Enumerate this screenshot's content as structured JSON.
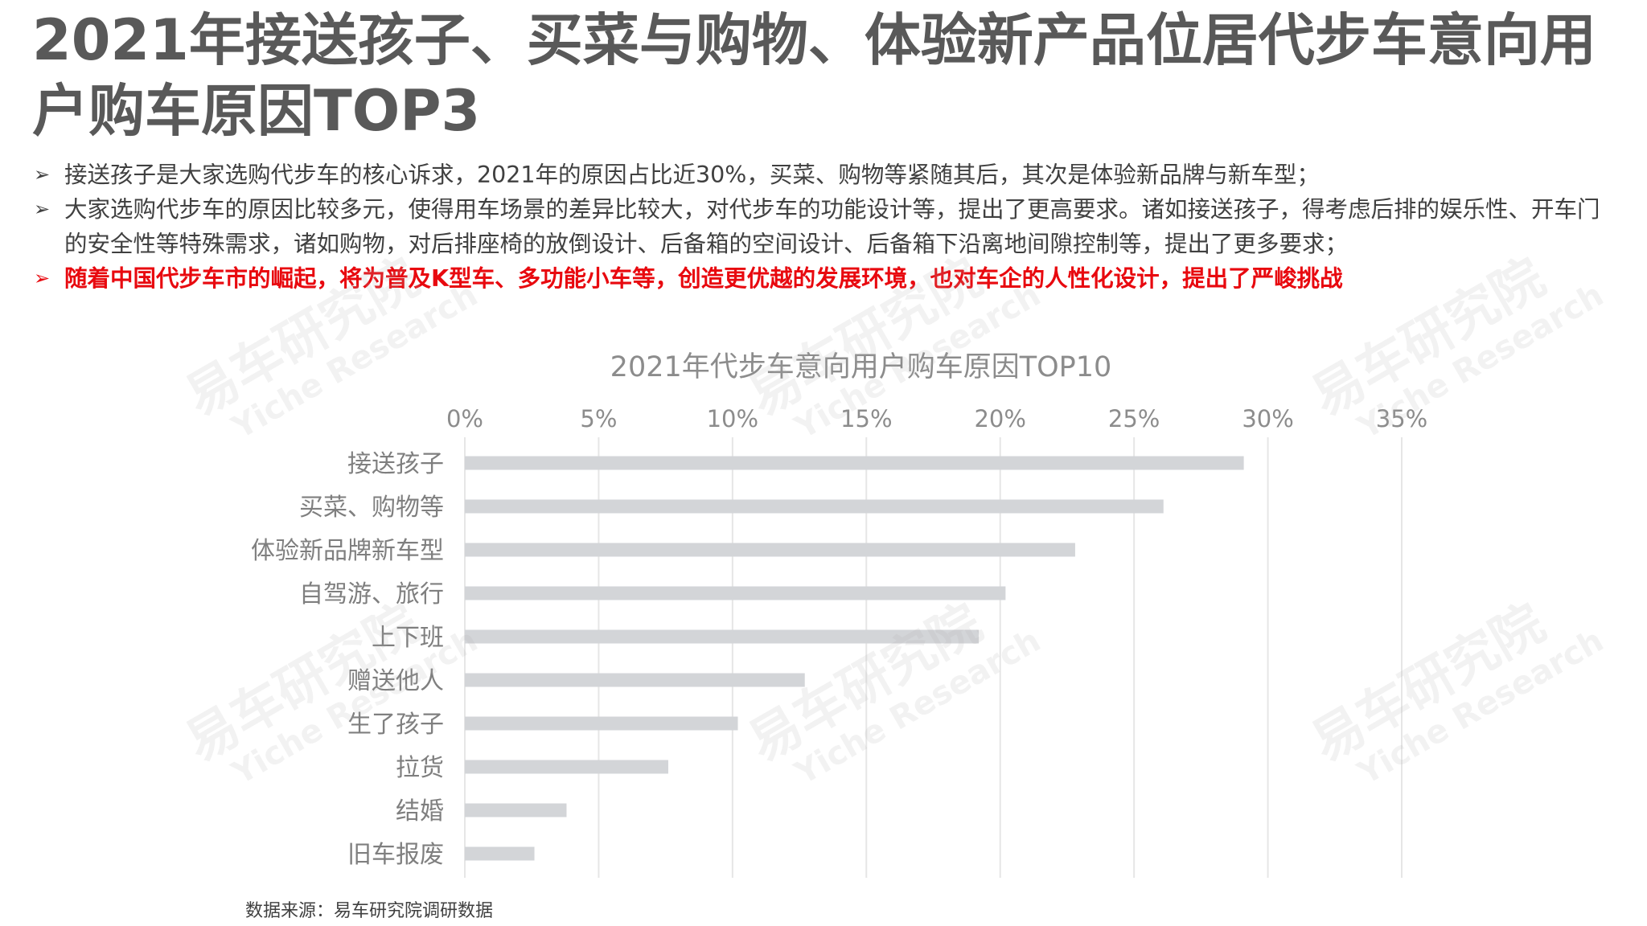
{
  "title": "2021年接送孩子、买菜与购物、体验新产品位居代步车意向用户购车原因TOP3",
  "bullets": [
    "接送孩子是大家选购代步车的核心诉求，2021年的原因占比近30%，买菜、购物等紧随其后，其次是体验新品牌与新车型；",
    "大家选购代步车的原因比较多元，使得用车场景的差异比较大，对代步车的功能设计等，提出了更高要求。诸如接送孩子，得考虑后排的娱乐性、开车门的安全性等特殊需求，诸如购物，对后排座椅的放倒设计、后备箱的空间设计、后备箱下沿离地间隙控制等，提出了更多要求；",
    "随着中国代步车市的崛起，将为普及K型车、多功能小车等，创造更优越的发展环境，也对车企的人性化设计，提出了严峻挑战"
  ],
  "bullet_marker": "➢",
  "watermark": {
    "cn": "易车研究院",
    "en": "Yiche Research"
  },
  "source": "数据来源：易车研究院调研数据",
  "colors": {
    "title": "#595959",
    "highlight": "#e8090f",
    "bar": "#d3d5d8",
    "grid": "#e6e6e6",
    "axis_text": "#8c8c8c",
    "category_text": "#7f7f7f"
  },
  "chart_data": {
    "type": "bar",
    "orientation": "horizontal",
    "title": "2021年代步车意向用户购车原因TOP10",
    "xlim": [
      0,
      35
    ],
    "x_ticks": [
      0,
      5,
      10,
      15,
      20,
      25,
      30,
      35
    ],
    "x_tick_labels": [
      "0%",
      "5%",
      "10%",
      "15%",
      "20%",
      "25%",
      "30%",
      "35%"
    ],
    "x_axis_position": "top",
    "grid": true,
    "categories": [
      "接送孩子",
      "买菜、购物等",
      "体验新品牌新车型",
      "自驾游、旅行",
      "上下班",
      "赠送他人",
      "生了孩子",
      "拉货",
      "结婚",
      "旧车报废"
    ],
    "values": [
      29.1,
      26.1,
      22.8,
      20.2,
      19.2,
      12.7,
      10.2,
      7.6,
      3.8,
      2.6
    ],
    "unit": "%"
  }
}
